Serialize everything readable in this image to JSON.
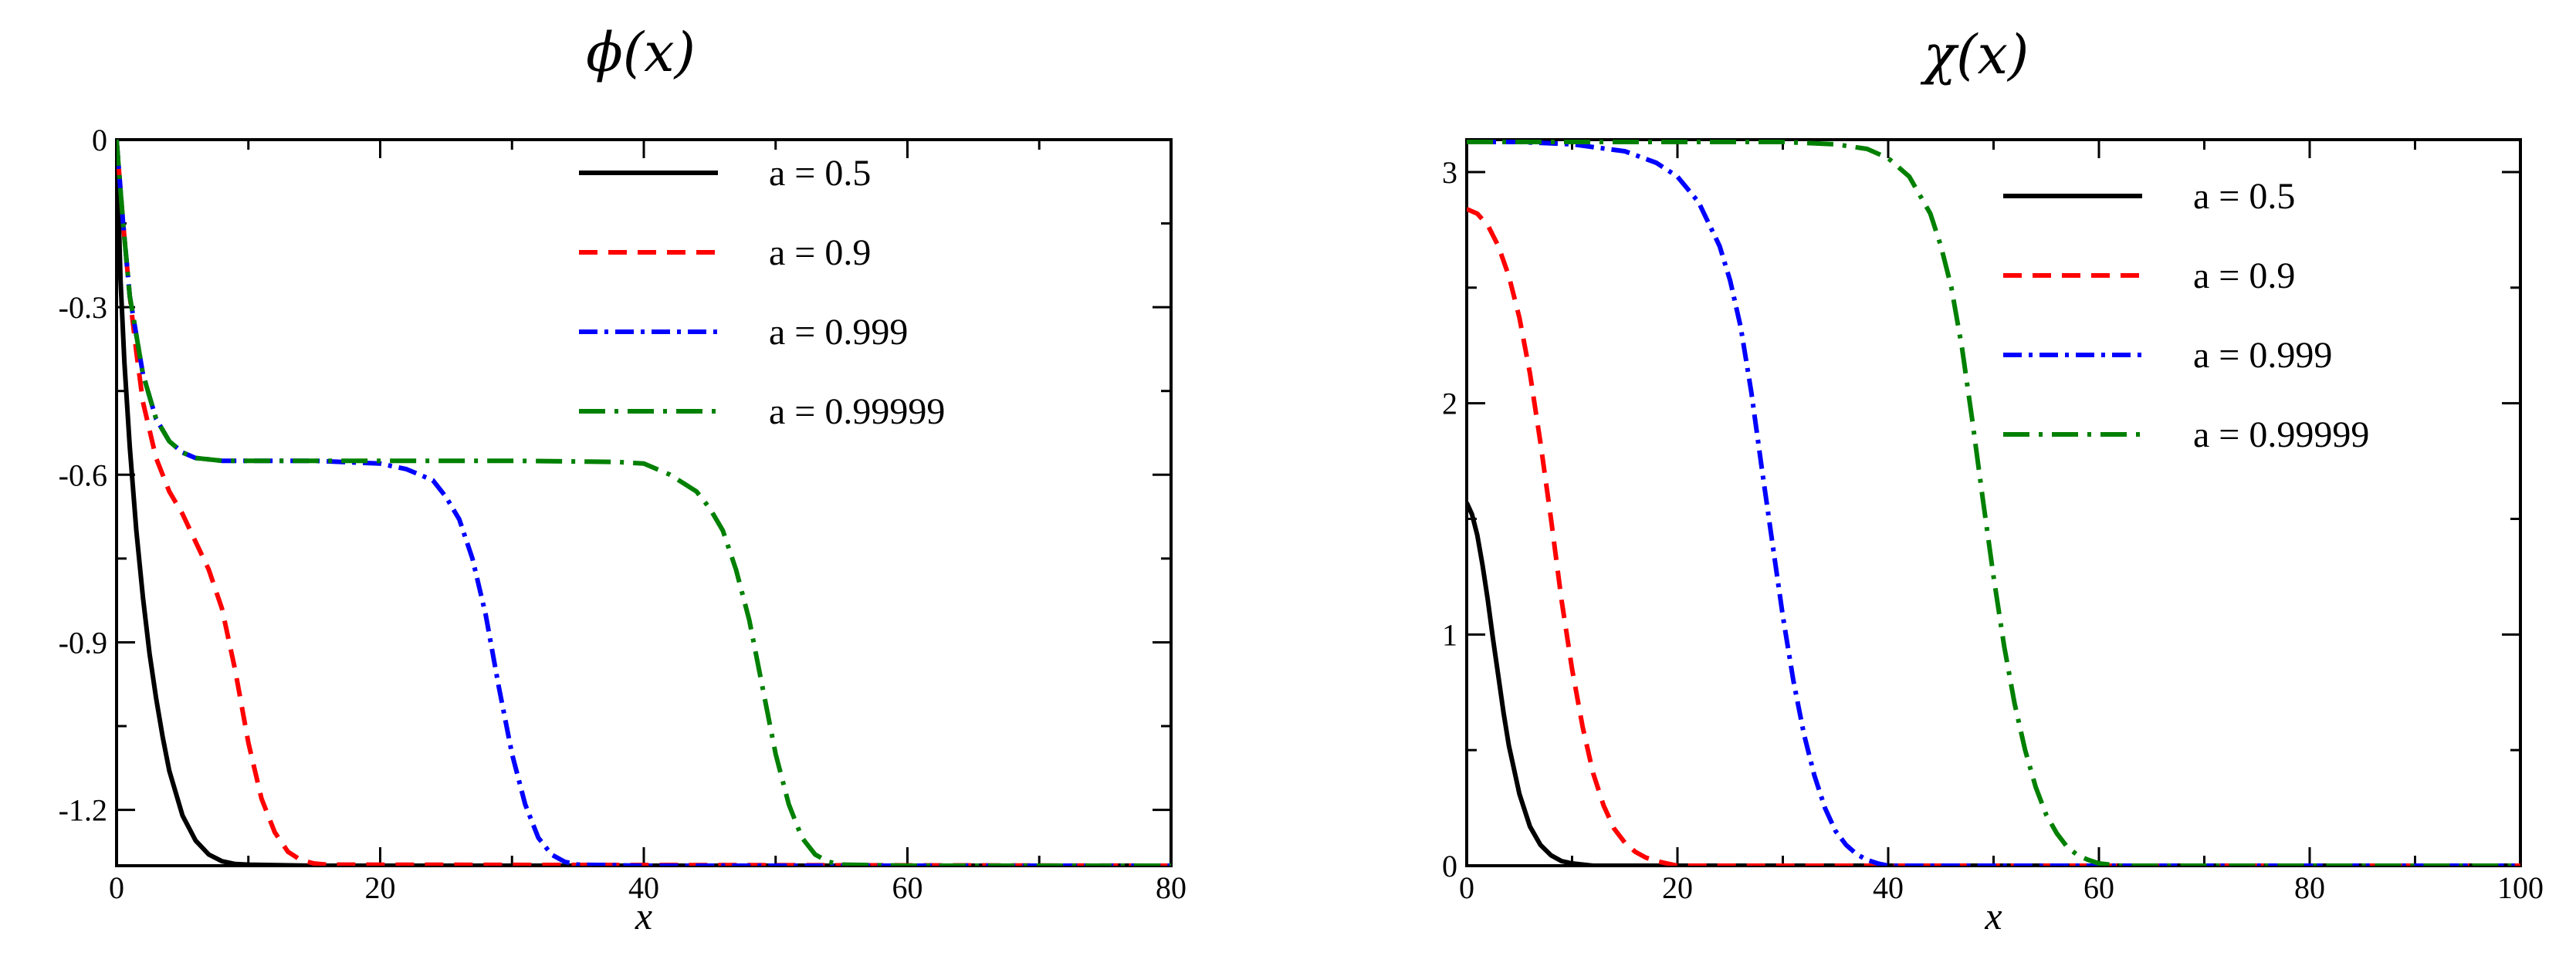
{
  "chart_data": [
    {
      "type": "line",
      "title": "ϕ(x)",
      "xlabel": "x",
      "ylabel": "",
      "xlim": [
        0,
        80
      ],
      "ylim": [
        -1.3,
        0
      ],
      "x_ticks": [
        0,
        20,
        40,
        60,
        80
      ],
      "x_tick_labels": [
        "0",
        "20",
        "40",
        "60",
        "80"
      ],
      "y_ticks": [
        0,
        -0.3,
        -0.6,
        -0.9,
        -1.2
      ],
      "y_tick_labels": [
        "0",
        "-0.3",
        "-0.6",
        "-0.9",
        "-1.2"
      ],
      "grid": false,
      "legend_position": "top-right",
      "series": [
        {
          "name": "a = 0.5",
          "color": "#000000",
          "dash": "solid",
          "x": [
            0,
            0.3,
            0.6,
            1,
            1.5,
            2,
            2.5,
            3,
            3.5,
            4,
            5,
            6,
            7,
            8,
            9,
            10,
            15,
            80
          ],
          "y": [
            0,
            -0.25,
            -0.4,
            -0.55,
            -0.7,
            -0.82,
            -0.92,
            -1.0,
            -1.07,
            -1.13,
            -1.21,
            -1.255,
            -1.28,
            -1.292,
            -1.297,
            -1.298,
            -1.3,
            -1.3
          ]
        },
        {
          "name": "a = 0.9",
          "color": "#ff0000",
          "dash": "dashed",
          "x": [
            0,
            0.5,
            1,
            1.5,
            2,
            3,
            4,
            5,
            6,
            7,
            8,
            9,
            10,
            11,
            12,
            13,
            14,
            15,
            16,
            80
          ],
          "y": [
            0,
            -0.15,
            -0.28,
            -0.38,
            -0.47,
            -0.57,
            -0.63,
            -0.67,
            -0.72,
            -0.77,
            -0.84,
            -0.95,
            -1.08,
            -1.18,
            -1.24,
            -1.275,
            -1.29,
            -1.296,
            -1.298,
            -1.3
          ]
        },
        {
          "name": "a = 0.999",
          "color": "#0000ff",
          "dash": "dashdot",
          "x": [
            0,
            0.5,
            1,
            2,
            3,
            4,
            5,
            6,
            8,
            10,
            15,
            20,
            22,
            24,
            25,
            26,
            27,
            28,
            29,
            30,
            31,
            32,
            33,
            34,
            35,
            40,
            80
          ],
          "y": [
            0,
            -0.15,
            -0.28,
            -0.42,
            -0.5,
            -0.54,
            -0.56,
            -0.57,
            -0.575,
            -0.575,
            -0.575,
            -0.58,
            -0.59,
            -0.61,
            -0.64,
            -0.68,
            -0.75,
            -0.85,
            -0.98,
            -1.1,
            -1.19,
            -1.25,
            -1.28,
            -1.293,
            -1.298,
            -1.3,
            -1.3
          ]
        },
        {
          "name": "a = 0.99999",
          "color": "#008000",
          "dash": "longdashdot",
          "x": [
            0,
            0.5,
            1,
            2,
            3,
            4,
            5,
            6,
            8,
            10,
            20,
            30,
            38,
            40,
            42,
            44,
            45,
            46,
            47,
            48,
            49,
            50,
            51,
            52,
            53,
            54,
            55,
            60,
            80
          ],
          "y": [
            0,
            -0.15,
            -0.28,
            -0.42,
            -0.5,
            -0.54,
            -0.56,
            -0.57,
            -0.575,
            -0.575,
            -0.575,
            -0.575,
            -0.577,
            -0.58,
            -0.6,
            -0.63,
            -0.66,
            -0.7,
            -0.77,
            -0.86,
            -0.98,
            -1.1,
            -1.19,
            -1.25,
            -1.28,
            -1.293,
            -1.298,
            -1.3,
            -1.3
          ]
        }
      ]
    },
    {
      "type": "line",
      "title": "χ(x)",
      "xlabel": "x",
      "ylabel": "",
      "xlim": [
        0,
        100
      ],
      "ylim": [
        0,
        3.14
      ],
      "x_ticks": [
        0,
        20,
        40,
        60,
        80,
        100
      ],
      "x_tick_labels": [
        "0",
        "20",
        "40",
        "60",
        "80",
        "100"
      ],
      "y_ticks": [
        0,
        1,
        2,
        3
      ],
      "y_tick_labels": [
        "0",
        "1",
        "2",
        "3"
      ],
      "grid": false,
      "legend_position": "top-right",
      "series": [
        {
          "name": "a = 0.5",
          "color": "#000000",
          "dash": "solid",
          "x": [
            0,
            0.5,
            1,
            1.5,
            2,
            2.5,
            3,
            3.5,
            4,
            5,
            6,
            7,
            8,
            9,
            10,
            12,
            100
          ],
          "y": [
            1.57,
            1.52,
            1.43,
            1.3,
            1.15,
            0.98,
            0.82,
            0.66,
            0.52,
            0.31,
            0.17,
            0.09,
            0.045,
            0.02,
            0.01,
            0.0,
            0.0
          ]
        },
        {
          "name": "a = 0.9",
          "color": "#ff0000",
          "dash": "dashed",
          "x": [
            0,
            1,
            2,
            3,
            4,
            5,
            6,
            7,
            8,
            9,
            10,
            11,
            12,
            13,
            14,
            15,
            16,
            17,
            18,
            19,
            20,
            100
          ],
          "y": [
            2.84,
            2.82,
            2.77,
            2.68,
            2.55,
            2.37,
            2.13,
            1.83,
            1.5,
            1.15,
            0.85,
            0.6,
            0.4,
            0.26,
            0.16,
            0.1,
            0.06,
            0.035,
            0.02,
            0.01,
            0.0,
            0.0
          ]
        },
        {
          "name": "a = 0.999",
          "color": "#0000ff",
          "dash": "dashdot",
          "x": [
            0,
            5,
            10,
            15,
            18,
            20,
            22,
            24,
            25,
            26,
            27,
            28,
            29,
            30,
            31,
            32,
            33,
            34,
            35,
            36,
            37,
            38,
            39,
            40,
            100
          ],
          "y": [
            3.13,
            3.13,
            3.12,
            3.09,
            3.04,
            2.98,
            2.87,
            2.68,
            2.53,
            2.33,
            2.05,
            1.72,
            1.4,
            1.08,
            0.8,
            0.57,
            0.39,
            0.25,
            0.15,
            0.09,
            0.05,
            0.025,
            0.01,
            0.0,
            0.0
          ]
        },
        {
          "name": "a = 0.99999",
          "color": "#008000",
          "dash": "longdashdot",
          "x": [
            0,
            10,
            20,
            30,
            35,
            38,
            40,
            42,
            44,
            45,
            46,
            47,
            48,
            49,
            50,
            51,
            52,
            53,
            54,
            55,
            56,
            57,
            58,
            59,
            60,
            62,
            100
          ],
          "y": [
            3.13,
            3.13,
            3.13,
            3.13,
            3.12,
            3.1,
            3.06,
            2.98,
            2.82,
            2.68,
            2.5,
            2.24,
            1.92,
            1.58,
            1.25,
            0.95,
            0.7,
            0.5,
            0.34,
            0.22,
            0.14,
            0.08,
            0.045,
            0.025,
            0.01,
            0.0,
            0.0
          ]
        }
      ]
    }
  ]
}
